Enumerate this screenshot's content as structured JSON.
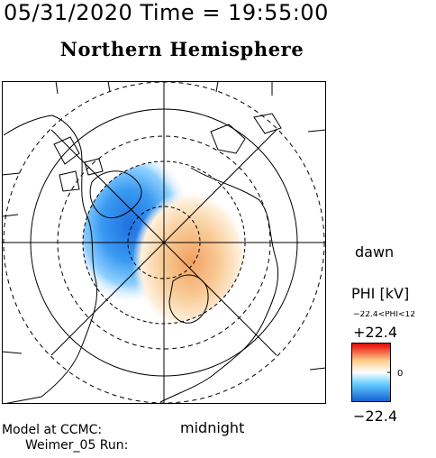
{
  "header": {
    "datetime": "05/31/2020 Time = 19:55:00",
    "title": "Northern Hemisphere"
  },
  "map": {
    "orientation_labels": {
      "right": "dawn",
      "bottom": "midnight"
    },
    "potential_pattern": {
      "negative_cell": {
        "sign": "negative",
        "side": "dusk",
        "color": "#1f78e0"
      },
      "positive_cell": {
        "sign": "positive",
        "side": "dawn",
        "color": "#f0a060"
      }
    }
  },
  "legend": {
    "title": "PHI [kV]",
    "range_text": "−22.4<PHI<12",
    "max_label": "+22.4",
    "zero_label": "0",
    "min_label": "−22.4",
    "colors": {
      "max": "#e60000",
      "high": "#ffcc88",
      "zero": "#ffffff",
      "low": "#66ccff",
      "min": "#1060d0"
    }
  },
  "footer": {
    "model_line1": "Model at CCMC:",
    "model_line2": "Weimer_05 Run:"
  }
}
